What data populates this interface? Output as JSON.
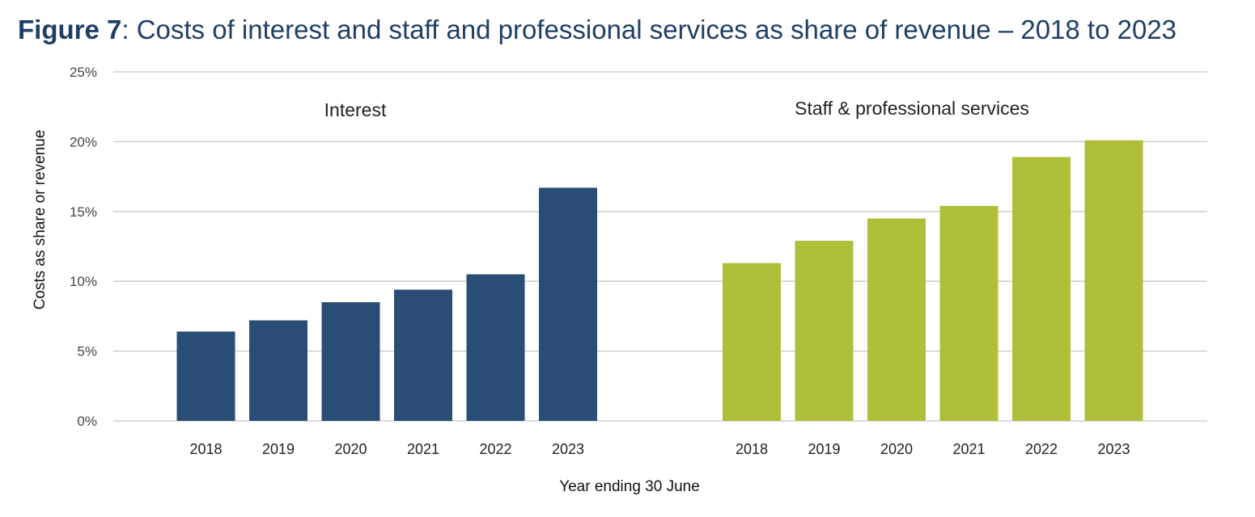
{
  "title": {
    "bold": "Figure 7",
    "rest": ": Costs of interest and staff and professional services as share of revenue – 2018 to 2023"
  },
  "colors": {
    "interest": "#2a4d75",
    "staff": "#afbf3a",
    "grid": "#c8c8c8"
  },
  "chart_data": {
    "type": "bar",
    "xlabel": "Year ending 30 June",
    "ylabel": "Costs as share or revenue",
    "ylim": [
      0,
      25
    ],
    "yticks": [
      "0%",
      "5%",
      "10%",
      "15%",
      "20%",
      "25%"
    ],
    "grid": true,
    "panels": [
      {
        "name": "Interest",
        "categories": [
          "2018",
          "2019",
          "2020",
          "2021",
          "2022",
          "2023"
        ],
        "values": [
          6.4,
          7.2,
          8.5,
          9.4,
          10.5,
          16.7
        ]
      },
      {
        "name": "Staff & professional services",
        "categories": [
          "2018",
          "2019",
          "2020",
          "2021",
          "2022",
          "2023"
        ],
        "values": [
          11.3,
          12.9,
          14.5,
          15.4,
          18.9,
          20.1
        ]
      }
    ]
  }
}
